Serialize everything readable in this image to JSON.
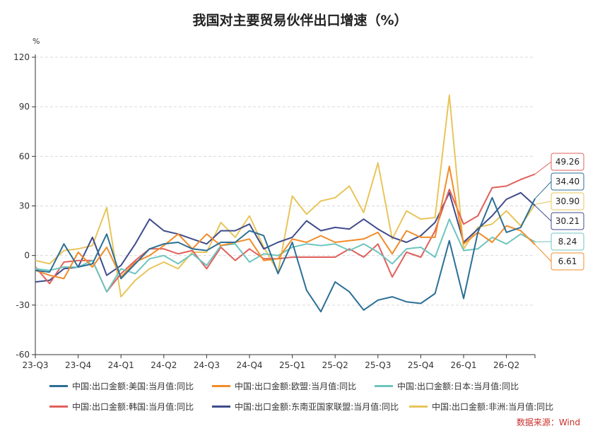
{
  "title": "我国对主要贸易伙伴出口增速（%）",
  "source": "数据来源：Wind",
  "chart_data": {
    "type": "line",
    "title": "我国对主要贸易伙伴出口增速（%）",
    "ylabel": "%",
    "ylim": [
      -60,
      120
    ],
    "yticks": [
      -60,
      -30,
      0,
      30,
      60,
      90,
      120
    ],
    "grid": true,
    "legend_position": "bottom",
    "x_tick_labels": [
      "23-Q3",
      "23-Q4",
      "24-Q1",
      "24-Q2",
      "24-Q3",
      "24-Q4",
      "25-Q1",
      "25-Q2",
      "25-Q3",
      "25-Q4",
      "26-Q1",
      "26-Q2"
    ],
    "series": [
      {
        "name": "中国:出口金额:美国:当月值:同比",
        "color": "#2b6f96",
        "values": [
          -9,
          -10,
          7,
          -7,
          -5,
          13,
          -14,
          -5,
          4,
          7,
          8,
          4,
          3,
          8,
          8,
          15,
          12,
          -11,
          8,
          -21,
          -34,
          -16,
          -22,
          -33,
          -27,
          -25,
          -28,
          -29,
          -23,
          9,
          -26,
          14,
          35,
          14,
          17,
          34.4
        ]
      },
      {
        "name": "中国:出口金额:欧盟:当月值:同比",
        "color": "#f28c28",
        "values": [
          -9,
          -12,
          -14,
          2,
          -7,
          5,
          -13,
          -4,
          0,
          6,
          13,
          4,
          13,
          6,
          8,
          10,
          -3,
          -2,
          10,
          8,
          12,
          8,
          9,
          10,
          14,
          1,
          15,
          11,
          11,
          54,
          7,
          14,
          8,
          18,
          15,
          6.61
        ]
      },
      {
        "name": "中国:出口金额:日本:当月值:同比",
        "color": "#6ec5bf",
        "values": [
          -8,
          -9,
          -7,
          -7,
          -3,
          -22,
          -8,
          -11,
          -2,
          0,
          -5,
          1,
          -6,
          6,
          7,
          -4,
          1,
          0,
          5,
          7,
          6,
          7,
          3,
          7,
          2,
          -5,
          4,
          5,
          -1,
          22,
          3,
          4,
          11,
          7,
          13,
          8.24
        ]
      },
      {
        "name": "中国:出口金额:韩国:当月值:同比",
        "color": "#e0605c",
        "values": [
          -7,
          -17,
          -4,
          -3,
          -3,
          -22,
          -11,
          -3,
          4,
          4,
          1,
          3,
          -8,
          5,
          -3,
          4,
          -2,
          -2,
          -1,
          -1,
          -1,
          -1,
          4,
          -1,
          7,
          -13,
          2,
          -1,
          15,
          40,
          19,
          24,
          41,
          42,
          46,
          49.26
        ]
      },
      {
        "name": "中国:出口金额:东南亚国家联盟:当月值:同比",
        "color": "#3f4c8c",
        "values": [
          -16,
          -15,
          -8,
          -7,
          11,
          -12,
          -6,
          7,
          22,
          15,
          13,
          10,
          7,
          15,
          15,
          19,
          4,
          8,
          11,
          21,
          15,
          17,
          16,
          22,
          16,
          11,
          8,
          12,
          20,
          38,
          8,
          16,
          24,
          34,
          38,
          30.21
        ]
      },
      {
        "name": "中国:出口金额:非洲:当月值:同比",
        "color": "#e8c55a",
        "values": [
          -3,
          -5,
          3,
          4,
          6,
          29,
          -25,
          -15,
          -8,
          -4,
          -8,
          2,
          2,
          20,
          11,
          24,
          5,
          -10,
          36,
          25,
          33,
          35,
          42,
          26,
          56,
          10,
          27,
          22,
          23,
          97,
          4,
          17,
          19,
          27,
          18,
          30.9
        ]
      }
    ],
    "end_labels": [
      "49.26",
      "34.40",
      "30.90",
      "30.21",
      "8.24",
      "6.61"
    ]
  }
}
